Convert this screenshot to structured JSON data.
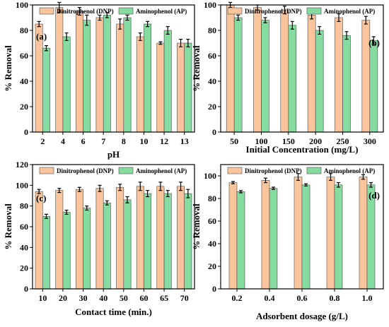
{
  "colors": {
    "dnp": "#fac59c",
    "ap": "#85dba0",
    "stroke": "#4a4a4a",
    "error": "#000000"
  },
  "legend": {
    "dnp": "Dinitrophenol (DNP)",
    "ap": "Aminophenol (AP)"
  },
  "chart_data": [
    {
      "type": "bar",
      "panel": "(a)",
      "xlabel": "pH",
      "ylabel": "% Removal",
      "ylim": [
        0,
        100
      ],
      "yticks": [
        0,
        20,
        40,
        60,
        80,
        100
      ],
      "categories": [
        "2",
        "4",
        "6",
        "7",
        "8",
        "10",
        "12",
        "13"
      ],
      "series": [
        {
          "name": "Dinitrophenol (DNP)",
          "values": [
            85,
            98,
            95,
            90,
            85,
            75,
            70,
            70
          ],
          "errors": [
            2,
            4,
            3,
            2,
            4,
            3,
            1,
            3
          ]
        },
        {
          "name": "Aminophenol (AP)",
          "values": [
            66,
            75,
            88,
            92,
            90,
            85,
            80,
            70
          ],
          "errors": [
            2,
            3,
            4,
            2,
            2,
            2,
            3,
            3
          ]
        }
      ],
      "legend_position": "top"
    },
    {
      "type": "bar",
      "panel": "(b)",
      "xlabel": "Initial Concentration (mg/L)",
      "ylabel": "% Removal",
      "ylim": [
        0,
        100
      ],
      "yticks": [
        0,
        20,
        40,
        60,
        80,
        100
      ],
      "categories": [
        "50",
        "100",
        "150",
        "200",
        "250",
        "300"
      ],
      "series": [
        {
          "name": "Dinitrophenol (DNP)",
          "values": [
            100,
            98,
            96,
            92,
            90,
            88
          ],
          "errors": [
            2,
            2,
            3,
            3,
            3,
            3
          ]
        },
        {
          "name": "Aminophenol (AP)",
          "values": [
            90,
            88,
            84,
            80,
            76,
            72
          ],
          "errors": [
            2,
            2,
            3,
            3,
            3,
            3
          ]
        }
      ],
      "legend_position": "top"
    },
    {
      "type": "bar",
      "panel": "(c)",
      "xlabel": "Contact time (min.)",
      "ylabel": "% Removal",
      "ylim": [
        0,
        120
      ],
      "yticks": [
        0,
        20,
        40,
        60,
        80,
        100,
        120
      ],
      "categories": [
        "10",
        "20",
        "30",
        "40",
        "50",
        "60",
        "65",
        "70"
      ],
      "series": [
        {
          "name": "Dinitrophenol (DNP)",
          "values": [
            94,
            95,
            96,
            97,
            98,
            99,
            99,
            99
          ],
          "errors": [
            2,
            2,
            2,
            3,
            3,
            4,
            4,
            4
          ]
        },
        {
          "name": "Aminophenol (AP)",
          "values": [
            70,
            74,
            78,
            83,
            86,
            92,
            92,
            92
          ],
          "errors": [
            2,
            2,
            2,
            2,
            3,
            3,
            3,
            4
          ]
        }
      ],
      "legend_position": "top"
    },
    {
      "type": "bar",
      "panel": "(d)",
      "xlabel": "Adsorbent dosage (g/L)",
      "ylabel": "% Removal",
      "ylim": [
        0,
        110
      ],
      "yticks": [
        0,
        20,
        40,
        60,
        80,
        100
      ],
      "categories": [
        "0.2",
        "0.4",
        "0.6",
        "0.8",
        "1.0"
      ],
      "series": [
        {
          "name": "Dinitrophenol (DNP)",
          "values": [
            94,
            96,
            99,
            99,
            99
          ],
          "errors": [
            1,
            2,
            3,
            3,
            2
          ]
        },
        {
          "name": "Aminophenol (AP)",
          "values": [
            86,
            89,
            92,
            92,
            92
          ],
          "errors": [
            1,
            1,
            1,
            2,
            2
          ]
        }
      ],
      "legend_position": "top"
    }
  ]
}
